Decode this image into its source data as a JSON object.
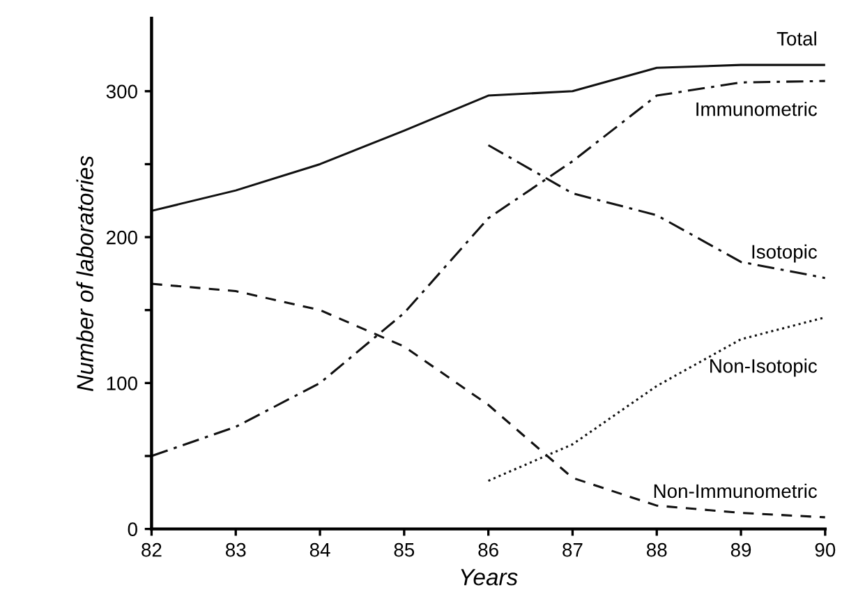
{
  "chart_data": {
    "type": "line",
    "xlabel": "Years",
    "ylabel": "Number of laboratories",
    "xlim": [
      82,
      90
    ],
    "xticks": [
      82,
      83,
      84,
      85,
      86,
      87,
      88,
      89,
      90
    ],
    "ylim": [
      0,
      350
    ],
    "yticks": [
      0,
      {
        "value": 50,
        "label": null
      },
      100,
      {
        "value": 150,
        "label": null
      },
      200,
      {
        "value": 250,
        "label": null
      },
      300
    ],
    "grid": false,
    "legend": false,
    "marker": "none",
    "series": [
      {
        "name": "Total",
        "color": "#111111",
        "line_style": "solid",
        "x": [
          82,
          83,
          84,
          85,
          86,
          87,
          88,
          89,
          90
        ],
        "values": [
          218,
          232,
          250,
          273,
          297,
          300,
          316,
          318,
          318
        ]
      },
      {
        "name": "Immunometric",
        "color": "#111111",
        "line_style": "dashdot",
        "x": [
          82,
          83,
          84,
          85,
          86,
          87,
          88,
          89,
          90
        ],
        "values": [
          50,
          70,
          100,
          148,
          213,
          252,
          297,
          306,
          307
        ]
      },
      {
        "name": "Isotopic",
        "color": "#111111",
        "line_style": "dashdot",
        "x": [
          86,
          87,
          88,
          89,
          90
        ],
        "values": [
          263,
          230,
          215,
          183,
          172
        ]
      },
      {
        "name": "Non-Isotopic",
        "color": "#111111",
        "line_style": "dotted",
        "x": [
          86,
          87,
          88,
          89,
          90
        ],
        "values": [
          33,
          58,
          98,
          130,
          145
        ]
      },
      {
        "name": "Non-Immunometric",
        "color": "#111111",
        "line_style": "dashed",
        "x": [
          82,
          83,
          84,
          85,
          86,
          87,
          88,
          89,
          90
        ],
        "values": [
          168,
          163,
          150,
          125,
          85,
          35,
          16,
          11,
          8
        ]
      }
    ]
  }
}
